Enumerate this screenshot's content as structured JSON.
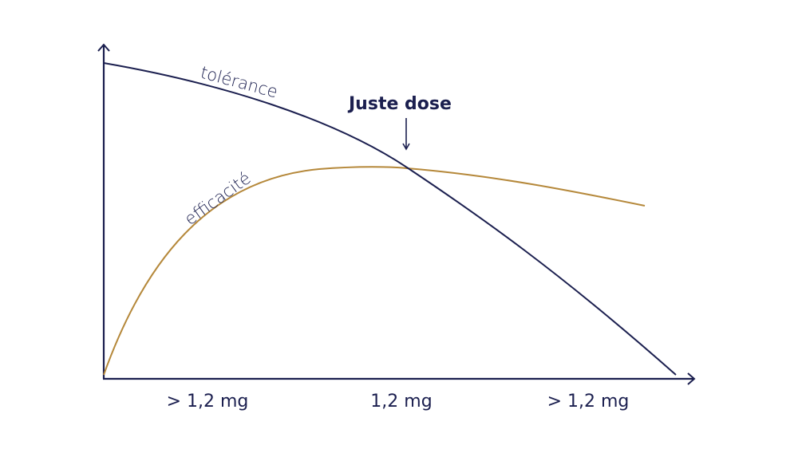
{
  "colors": {
    "tolerance": "#1b1f4f",
    "efficacy": "#b5883a",
    "axes": "#1b1f4f"
  },
  "curves": {
    "tolerance_label": "tolérance",
    "efficacy_label": "efficacité"
  },
  "annotation": {
    "label": "Juste dose"
  },
  "x_axis": {
    "ticks": [
      "> 1,2 mg",
      "1,2 mg",
      "> 1,2 mg"
    ]
  }
}
